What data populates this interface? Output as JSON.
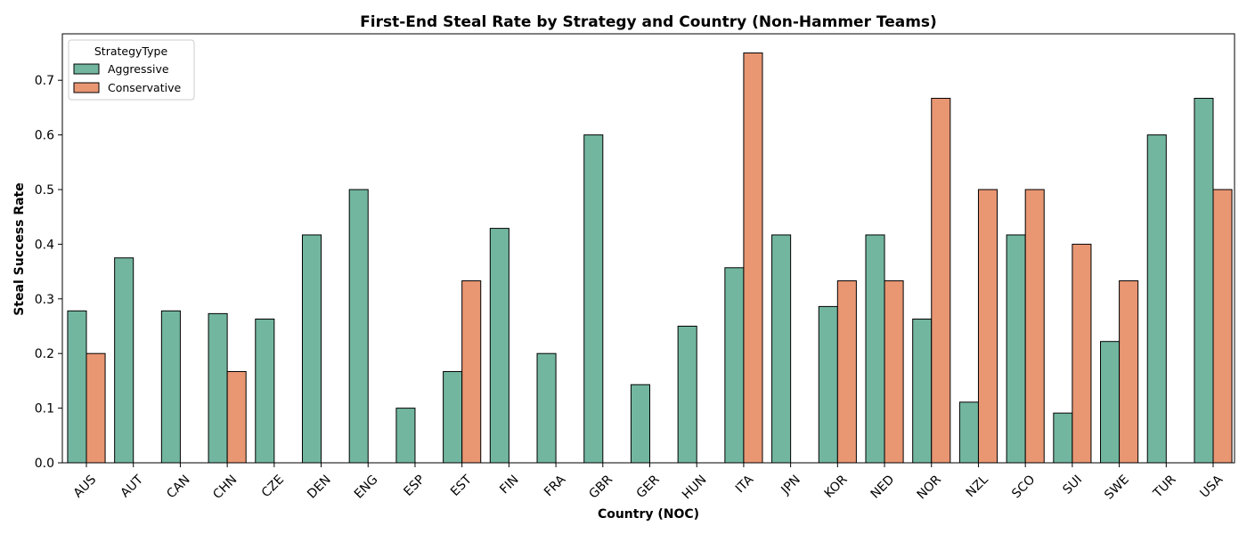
{
  "chart_data": {
    "type": "bar",
    "title": "First-End Steal Rate by Strategy and Country (Non-Hammer Teams)",
    "xlabel": "Country (NOC)",
    "ylabel": "Steal Success Rate",
    "ylim": [
      0,
      0.785
    ],
    "yticks": [
      0.0,
      0.1,
      0.2,
      0.3,
      0.4,
      0.5,
      0.6,
      0.7
    ],
    "ytick_labels": [
      "0.0",
      "0.1",
      "0.2",
      "0.3",
      "0.4",
      "0.5",
      "0.6",
      "0.7"
    ],
    "grid": false,
    "legend": {
      "title": "StrategyType",
      "placement": "top-left"
    },
    "categories": [
      "AUS",
      "AUT",
      "CAN",
      "CHN",
      "CZE",
      "DEN",
      "ENG",
      "ESP",
      "EST",
      "FIN",
      "FRA",
      "GBR",
      "GER",
      "HUN",
      "ITA",
      "JPN",
      "KOR",
      "NED",
      "NOR",
      "NZL",
      "SCO",
      "SUI",
      "SWE",
      "TUR",
      "USA"
    ],
    "series": [
      {
        "name": "Aggressive",
        "color": "#72b6a0",
        "values": [
          0.278,
          0.375,
          0.278,
          0.273,
          0.263,
          0.417,
          0.5,
          0.1,
          0.167,
          0.429,
          0.2,
          0.6,
          0.143,
          0.25,
          0.357,
          0.417,
          0.286,
          0.417,
          0.263,
          0.111,
          0.417,
          0.091,
          0.222,
          0.6,
          0.667
        ]
      },
      {
        "name": "Conservative",
        "color": "#e99673",
        "values": [
          0.2,
          null,
          null,
          0.167,
          0.0,
          null,
          0.0,
          0.0,
          0.333,
          null,
          null,
          0.0,
          0.0,
          0.0,
          0.75,
          0.0,
          0.333,
          0.333,
          0.667,
          0.5,
          0.5,
          0.4,
          0.333,
          0.0,
          0.5
        ]
      }
    ]
  }
}
